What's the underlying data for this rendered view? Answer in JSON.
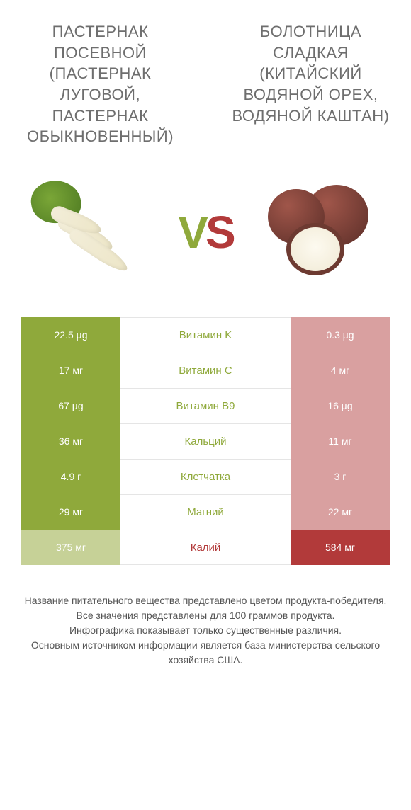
{
  "left_title": "ПАСТЕРНАК ПОСЕВНОЙ (ПАСТЕРНАК ЛУГОВОЙ, ПАСТЕРНАК ОБЫКНОВЕННЫЙ)",
  "right_title": "БОЛОТНИЦА СЛАДКАЯ (КИТАЙСКИЙ ВОДЯНОЙ ОРЕХ, ВОДЯНОЙ КАШТАН)",
  "vs_v": "V",
  "vs_s": "S",
  "colors": {
    "left_win": "#8fa93b",
    "left_lose": "#c6d197",
    "right_win": "#b23a3a",
    "right_lose": "#d9a0a0",
    "nutrient_left_win": "#8fa93b",
    "nutrient_right_win": "#b23a3a",
    "row_border": "#e5e5e5",
    "title_text": "#6e6e6e",
    "footer_text": "#555555",
    "background": "#ffffff"
  },
  "typography": {
    "title_fontsize": 22,
    "vs_fontsize": 64,
    "cell_fontsize": 14,
    "nutrient_fontsize": 15,
    "footer_fontsize": 14
  },
  "rows": [
    {
      "nutrient": "Витамин K",
      "left": "22.5 µg",
      "right": "0.3 µg",
      "winner": "left"
    },
    {
      "nutrient": "Витамин C",
      "left": "17 мг",
      "right": "4 мг",
      "winner": "left"
    },
    {
      "nutrient": "Витамин B9",
      "left": "67 µg",
      "right": "16 µg",
      "winner": "left"
    },
    {
      "nutrient": "Кальций",
      "left": "36 мг",
      "right": "11 мг",
      "winner": "left"
    },
    {
      "nutrient": "Клетчатка",
      "left": "4.9 г",
      "right": "3 г",
      "winner": "left"
    },
    {
      "nutrient": "Магний",
      "left": "29 мг",
      "right": "22 мг",
      "winner": "left"
    },
    {
      "nutrient": "Калий",
      "left": "375 мг",
      "right": "584 мг",
      "winner": "right"
    }
  ],
  "footer_lines": [
    "Название питательного вещества представлено цветом продукта-победителя.",
    "Все значения представлены для 100 граммов продукта.",
    "Инфографика показывает только существенные различия.",
    "Основным источником информации является база министерства сельского хозяйства США."
  ]
}
